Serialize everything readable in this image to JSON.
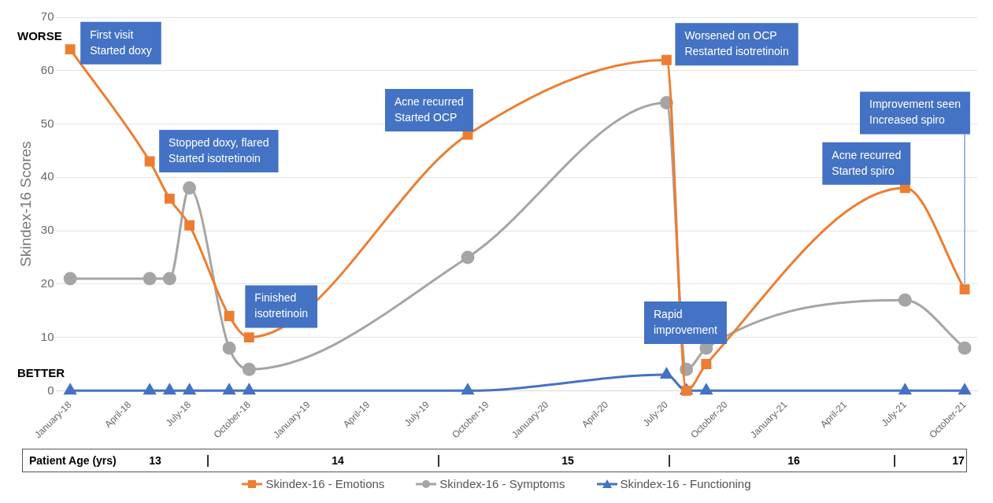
{
  "chart_data": {
    "type": "line",
    "ylabel": "Skindex-16 Scores",
    "x": [
      "2018-01",
      "2018-05",
      "2018-06",
      "2018-07",
      "2018-09",
      "2018-10",
      "2019-09",
      "2020-07",
      "2020-08",
      "2020-09",
      "2021-07",
      "2021-10"
    ],
    "series": [
      {
        "name": "Skindex-16 - Emotions",
        "color": "#ed7d31",
        "marker": "square",
        "values": [
          64,
          43,
          36,
          31,
          14,
          10,
          48,
          62,
          0,
          5,
          38,
          19
        ]
      },
      {
        "name": "Skindex-16 - Symptoms",
        "color": "#a5a5a5",
        "marker": "circle",
        "values": [
          21,
          21,
          21,
          38,
          8,
          4,
          25,
          54,
          4,
          8,
          17,
          8
        ]
      },
      {
        "name": "Skindex-16 - Functioning",
        "color": "#4472c4",
        "marker": "triangle",
        "values": [
          0,
          0,
          0,
          0,
          0,
          0,
          0,
          3,
          0,
          0,
          0,
          0
        ]
      }
    ],
    "xlim": [
      "2017-12-10",
      "2021-10-20"
    ],
    "xticks": [
      {
        "value": "2018-01",
        "label": "January-18"
      },
      {
        "value": "2018-04",
        "label": "April-18"
      },
      {
        "value": "2018-07",
        "label": "July-18"
      },
      {
        "value": "2018-10",
        "label": "October-18"
      },
      {
        "value": "2019-01",
        "label": "January-19"
      },
      {
        "value": "2019-04",
        "label": "April-19"
      },
      {
        "value": "2019-07",
        "label": "July-19"
      },
      {
        "value": "2019-10",
        "label": "October-19"
      },
      {
        "value": "2020-01",
        "label": "January-20"
      },
      {
        "value": "2020-04",
        "label": "April-20"
      },
      {
        "value": "2020-07",
        "label": "July-20"
      },
      {
        "value": "2020-10",
        "label": "October-20"
      },
      {
        "value": "2021-01",
        "label": "January-21"
      },
      {
        "value": "2021-04",
        "label": "April-21"
      },
      {
        "value": "2021-07",
        "label": "July-21"
      },
      {
        "value": "2021-10",
        "label": "October-21"
      }
    ],
    "ylim": [
      0,
      70
    ],
    "yticks": [
      0,
      10,
      20,
      30,
      40,
      50,
      60,
      70
    ],
    "grid": "y",
    "legend": "bottom",
    "annotations": [
      "WORSE",
      "BETTER",
      "Patient Age (yrs)",
      "13",
      "14",
      "15",
      "16",
      "17",
      "Rapid\nimprovement",
      {
        "text": "First visit\nStarted doxy",
        "x": "2018-01",
        "y": 64
      },
      {
        "text": "Stopped doxy, flared\nStarted isotretinoin",
        "x": "2018-05",
        "y": 43
      },
      {
        "text": "Finished\nisotretinoin",
        "x": "2018-10",
        "y": 10
      },
      {
        "text": "Acne recurred\nStarted OCP",
        "x": "2019-09",
        "y": 48
      },
      {
        "text": "Worsened on OCP\nRestarted isotretinoin",
        "x": "2020-07",
        "y": 62
      },
      {
        "text": "Acne recurred\nStarted spiro",
        "x": "2021-07",
        "y": 38
      },
      {
        "text": "Improvement seen\nIncreased spiro",
        "x": "2021-10",
        "y": 19
      }
    ]
  }
}
